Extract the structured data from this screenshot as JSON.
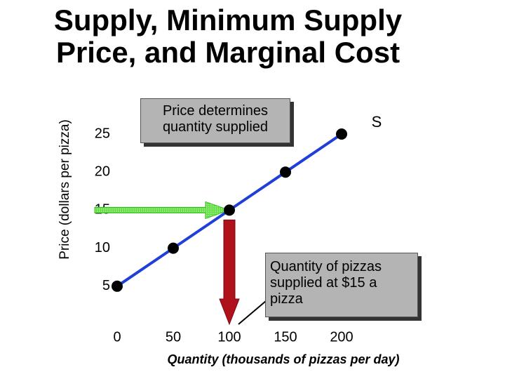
{
  "chart_data": {
    "type": "line",
    "title": "Supply, Minimum Supply Price, and Marginal Cost",
    "x_label": "Quantity (thousands of pizzas per day)",
    "y_label": "Price (dollars per pizza)",
    "x": [
      0,
      50,
      100,
      150,
      200
    ],
    "series": [
      {
        "name": "S",
        "color": "#1f3fd8",
        "values": [
          5,
          10,
          15,
          20,
          25
        ]
      }
    ],
    "xlim": [
      0,
      200
    ],
    "xticks": [
      0,
      50,
      100,
      150,
      200
    ],
    "ylim": [
      0,
      25
    ],
    "yticks": [
      5,
      10,
      15,
      20,
      25
    ],
    "annotations": [
      "Price determines quantity supplied",
      "Quantity of pizzas supplied at $15 a pizza"
    ]
  }
}
